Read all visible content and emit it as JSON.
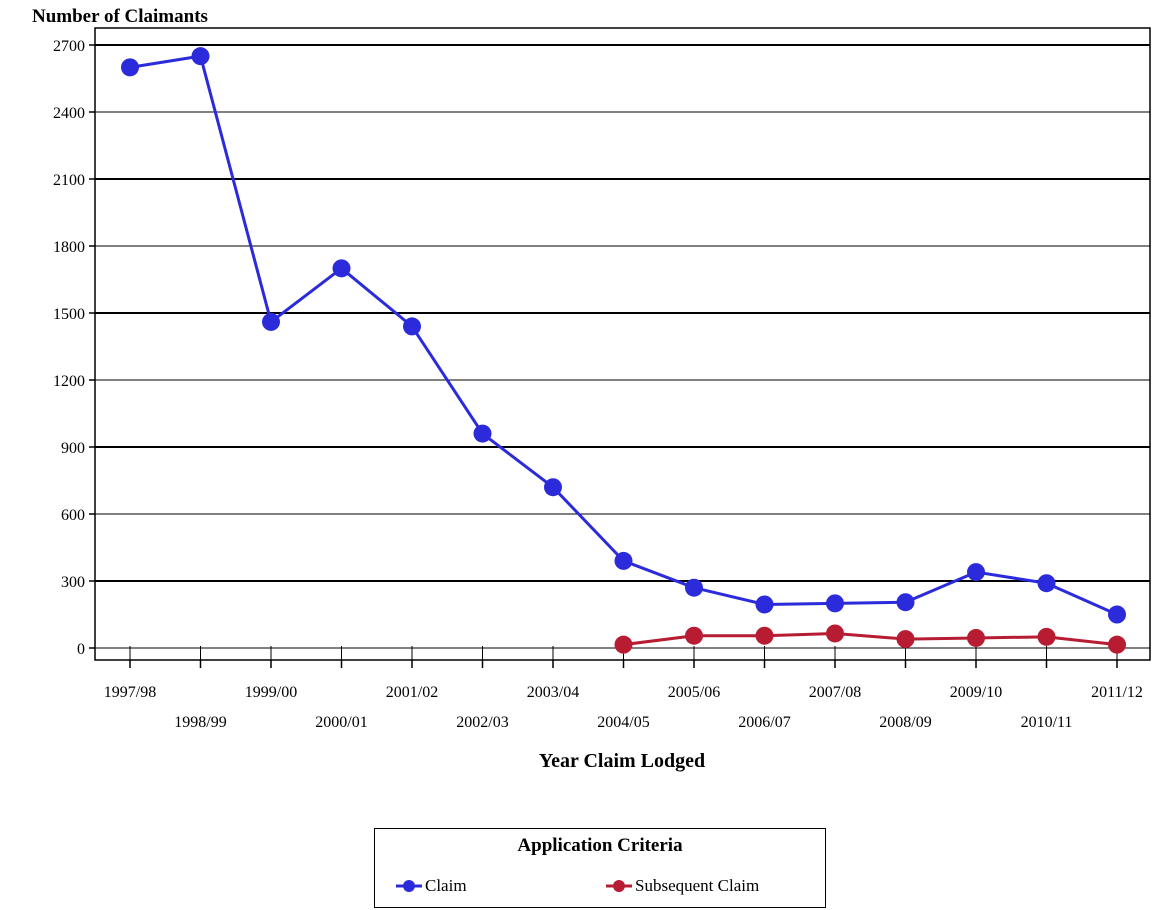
{
  "chart_data": {
    "type": "line",
    "title": "",
    "ylabel": "Number of Claimants",
    "xlabel": "Year Claim Lodged",
    "categories": [
      "1997/98",
      "1998/99",
      "1999/00",
      "2000/01",
      "2001/02",
      "2002/03",
      "2003/04",
      "2004/05",
      "2005/06",
      "2006/07",
      "2007/08",
      "2008/09",
      "2009/10",
      "2010/11",
      "2011/12"
    ],
    "ylim": [
      0,
      2700
    ],
    "yticks": [
      0,
      300,
      600,
      900,
      1200,
      1500,
      1800,
      2100,
      2400,
      2700
    ],
    "grid": true,
    "legend_title": "Application Criteria",
    "legend_position": "bottom",
    "series": [
      {
        "name": "Claim",
        "color": "#2b2bdc",
        "values": [
          2600,
          2650,
          1460,
          1700,
          1440,
          960,
          720,
          390,
          270,
          195,
          200,
          205,
          340,
          290,
          150
        ]
      },
      {
        "name": "Subsequent Claim",
        "color": "#b81c33",
        "values": [
          null,
          null,
          null,
          null,
          null,
          null,
          null,
          15,
          55,
          55,
          65,
          40,
          45,
          50,
          15
        ]
      }
    ]
  }
}
